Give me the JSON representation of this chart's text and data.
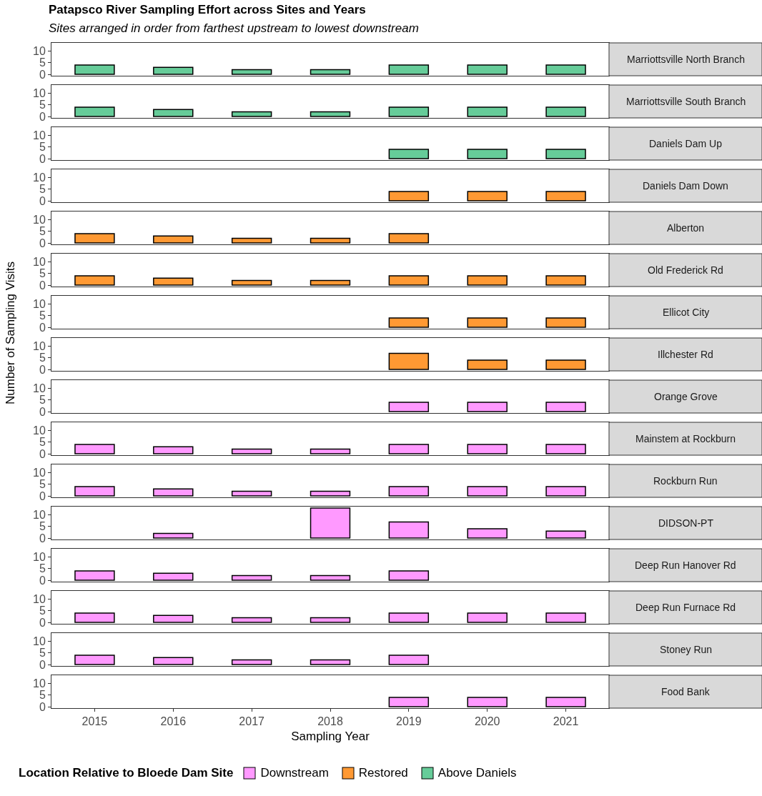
{
  "chart_data": [
    {
      "type": "bar",
      "title": "Patapsco River Sampling Effort across Sites and Years",
      "subtitle": "Sites arranged in order from farthest upstream to lowest downstream",
      "legend": "bottom",
      "annotations": [
        "Marriottsville North Branch"
      ],
      "categories": [
        "2015",
        "2016",
        "2017",
        "2018",
        "2019",
        "2020",
        "2021"
      ],
      "series": [
        {
          "name": "Above Daniels",
          "color": "#66cc99",
          "values": [
            4,
            3,
            2,
            2,
            4,
            4,
            4
          ]
        }
      ],
      "ylim": [
        -0.6,
        13.6
      ],
      "yticks": [
        0,
        5,
        10
      ],
      "tick_labels": "y",
      "grid": false
    },
    {
      "type": "bar",
      "annotations": [
        "Marriottsville South Branch"
      ],
      "categories": [
        "2015",
        "2016",
        "2017",
        "2018",
        "2019",
        "2020",
        "2021"
      ],
      "series": [
        {
          "color": "#66cc99",
          "values": [
            4,
            3,
            2,
            2,
            4,
            4,
            4
          ]
        }
      ],
      "ylim": [
        -0.6,
        13.6
      ],
      "yticks": [
        0,
        5,
        10
      ],
      "tick_labels": "y",
      "grid": false
    },
    {
      "type": "bar",
      "annotations": [
        "Daniels Dam Up"
      ],
      "categories": [
        "2015",
        "2016",
        "2017",
        "2018",
        "2019",
        "2020",
        "2021"
      ],
      "series": [
        {
          "color": "#66cc99",
          "values": [
            null,
            null,
            null,
            null,
            4,
            4,
            4
          ]
        }
      ],
      "ylim": [
        -0.6,
        13.6
      ],
      "yticks": [
        0,
        5,
        10
      ],
      "tick_labels": "y",
      "grid": false
    },
    {
      "type": "bar",
      "legend": "bottom",
      "annotations": [
        "Daniels Dam Down"
      ],
      "categories": [
        "2015",
        "2016",
        "2017",
        "2018",
        "2019",
        "2020",
        "2021"
      ],
      "series": [
        {
          "name": "Restored",
          "color": "#ff9933",
          "values": [
            null,
            null,
            null,
            null,
            4,
            4,
            4
          ]
        }
      ],
      "ylim": [
        -0.6,
        13.6
      ],
      "yticks": [
        0,
        5,
        10
      ],
      "tick_labels": "y",
      "grid": false
    },
    {
      "type": "bar",
      "annotations": [
        "Alberton"
      ],
      "categories": [
        "2015",
        "2016",
        "2017",
        "2018",
        "2019",
        "2020",
        "2021"
      ],
      "series": [
        {
          "color": "#ff9933",
          "values": [
            4,
            3,
            2,
            2,
            4,
            null,
            null
          ]
        }
      ],
      "ylim": [
        -0.6,
        13.6
      ],
      "yticks": [
        0,
        5,
        10
      ],
      "tick_labels": "y",
      "grid": false
    },
    {
      "type": "bar",
      "annotations": [
        "Old Frederick Rd"
      ],
      "categories": [
        "2015",
        "2016",
        "2017",
        "2018",
        "2019",
        "2020",
        "2021"
      ],
      "series": [
        {
          "color": "#ff9933",
          "values": [
            4,
            3,
            2,
            2,
            4,
            4,
            4
          ]
        }
      ],
      "ylim": [
        -0.6,
        13.6
      ],
      "yticks": [
        0,
        5,
        10
      ],
      "tick_labels": "y",
      "grid": false
    },
    {
      "type": "bar",
      "annotations": [
        "Ellicot City"
      ],
      "categories": [
        "2015",
        "2016",
        "2017",
        "2018",
        "2019",
        "2020",
        "2021"
      ],
      "series": [
        {
          "color": "#ff9933",
          "values": [
            null,
            null,
            null,
            null,
            4,
            4,
            4
          ]
        }
      ],
      "ylim": [
        -0.6,
        13.6
      ],
      "yticks": [
        0,
        5,
        10
      ],
      "tick_labels": "y",
      "grid": false
    },
    {
      "type": "bar",
      "ylabel": "Number of Sampling Visits",
      "annotations": [
        "Illchester Rd"
      ],
      "categories": [
        "2015",
        "2016",
        "2017",
        "2018",
        "2019",
        "2020",
        "2021"
      ],
      "series": [
        {
          "color": "#ff9933",
          "values": [
            null,
            null,
            null,
            null,
            7,
            4,
            4
          ]
        }
      ],
      "ylim": [
        -0.6,
        13.6
      ],
      "yticks": [
        0,
        5,
        10
      ],
      "tick_labels": "y",
      "grid": false
    },
    {
      "type": "bar",
      "legend": "bottom",
      "legend_title": "Location Relative to Bloede Dam Site",
      "annotations": [
        "Orange Grove"
      ],
      "categories": [
        "2015",
        "2016",
        "2017",
        "2018",
        "2019",
        "2020",
        "2021"
      ],
      "series": [
        {
          "name": "Downstream",
          "color": "#ff99ff",
          "values": [
            null,
            null,
            null,
            null,
            4,
            4,
            4
          ]
        }
      ],
      "ylim": [
        -0.6,
        13.6
      ],
      "yticks": [
        0,
        5,
        10
      ],
      "tick_labels": "y",
      "grid": false
    },
    {
      "type": "bar",
      "annotations": [
        "Mainstem at Rockburn"
      ],
      "categories": [
        "2015",
        "2016",
        "2017",
        "2018",
        "2019",
        "2020",
        "2021"
      ],
      "series": [
        {
          "color": "#ff99ff",
          "values": [
            4,
            3,
            2,
            2,
            4,
            4,
            4
          ]
        }
      ],
      "ylim": [
        -0.6,
        13.6
      ],
      "yticks": [
        0,
        5,
        10
      ],
      "tick_labels": "y",
      "grid": false
    },
    {
      "type": "bar",
      "annotations": [
        "Rockburn Run"
      ],
      "categories": [
        "2015",
        "2016",
        "2017",
        "2018",
        "2019",
        "2020",
        "2021"
      ],
      "series": [
        {
          "color": "#ff99ff",
          "values": [
            4,
            3,
            2,
            2,
            4,
            4,
            4
          ]
        }
      ],
      "ylim": [
        -0.6,
        13.6
      ],
      "yticks": [
        0,
        5,
        10
      ],
      "tick_labels": "y",
      "grid": false
    },
    {
      "type": "bar",
      "annotations": [
        "DIDSON-PT"
      ],
      "categories": [
        "2015",
        "2016",
        "2017",
        "2018",
        "2019",
        "2020",
        "2021"
      ],
      "series": [
        {
          "color": "#ff99ff",
          "values": [
            null,
            2,
            null,
            13,
            7,
            4,
            3
          ]
        }
      ],
      "ylim": [
        -0.6,
        13.6
      ],
      "yticks": [
        0,
        5,
        10
      ],
      "tick_labels": "y",
      "grid": false
    },
    {
      "type": "bar",
      "annotations": [
        "Deep Run Hanover Rd"
      ],
      "categories": [
        "2015",
        "2016",
        "2017",
        "2018",
        "2019",
        "2020",
        "2021"
      ],
      "series": [
        {
          "color": "#ff99ff",
          "values": [
            4,
            3,
            2,
            2,
            4,
            null,
            null
          ]
        }
      ],
      "ylim": [
        -0.6,
        13.6
      ],
      "yticks": [
        0,
        5,
        10
      ],
      "tick_labels": "y",
      "grid": false
    },
    {
      "type": "bar",
      "annotations": [
        "Deep Run Furnace Rd"
      ],
      "categories": [
        "2015",
        "2016",
        "2017",
        "2018",
        "2019",
        "2020",
        "2021"
      ],
      "series": [
        {
          "color": "#ff99ff",
          "values": [
            4,
            3,
            2,
            2,
            4,
            4,
            4
          ]
        }
      ],
      "ylim": [
        -0.6,
        13.6
      ],
      "yticks": [
        0,
        5,
        10
      ],
      "tick_labels": "y",
      "grid": false
    },
    {
      "type": "bar",
      "annotations": [
        "Stoney Run"
      ],
      "categories": [
        "2015",
        "2016",
        "2017",
        "2018",
        "2019",
        "2020",
        "2021"
      ],
      "series": [
        {
          "color": "#ff99ff",
          "values": [
            4,
            3,
            2,
            2,
            4,
            null,
            null
          ]
        }
      ],
      "ylim": [
        -0.6,
        13.6
      ],
      "yticks": [
        0,
        5,
        10
      ],
      "tick_labels": "y",
      "grid": false
    },
    {
      "type": "bar",
      "xlabel": "Sampling Year",
      "annotations": [
        "Food Bank"
      ],
      "categories": [
        "2015",
        "2016",
        "2017",
        "2018",
        "2019",
        "2020",
        "2021"
      ],
      "series": [
        {
          "color": "#ff99ff",
          "values": [
            null,
            null,
            null,
            null,
            4,
            4,
            4
          ]
        }
      ],
      "ylim": [
        -0.6,
        13.6
      ],
      "yticks": [
        0,
        5,
        10
      ],
      "grid": false
    }
  ]
}
